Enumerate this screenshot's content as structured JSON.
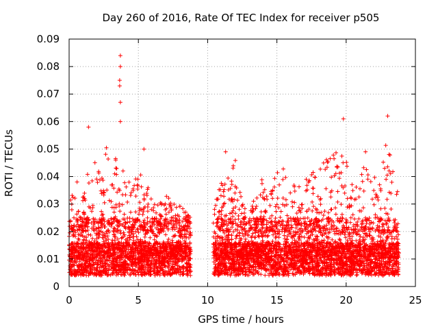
{
  "chart_data": {
    "type": "scatter",
    "title": "Day 260 of 2016, Rate Of TEC Index for receiver p505",
    "xlabel": "GPS time / hours",
    "ylabel": "ROTI / TECUs",
    "xlim": [
      0,
      25
    ],
    "ylim": [
      0,
      0.09
    ],
    "xticks": [
      0,
      5,
      10,
      15,
      20,
      25
    ],
    "xtick_labels": [
      "0",
      "5",
      "10",
      "15",
      "20",
      "25"
    ],
    "yticks": [
      0,
      0.01,
      0.02,
      0.03,
      0.04,
      0.05,
      0.06,
      0.07,
      0.08,
      0.09
    ],
    "ytick_labels": [
      "0",
      "0.01",
      "0.02",
      "0.03",
      "0.04",
      "0.05",
      "0.06",
      "0.07",
      "0.08",
      "0.09"
    ],
    "grid": true,
    "marker": "+",
    "color": "#ff0000",
    "series": [
      {
        "name": "ROTI",
        "coverage": [
          [
            0,
            8.8
          ],
          [
            10.4,
            23.8
          ]
        ],
        "data_gap_hours": [
          8.8,
          10.4
        ],
        "notable_points": [
          {
            "x": 3.7,
            "y": 0.084
          },
          {
            "x": 3.7,
            "y": 0.08
          },
          {
            "x": 3.65,
            "y": 0.075
          },
          {
            "x": 3.65,
            "y": 0.073
          },
          {
            "x": 3.7,
            "y": 0.067
          },
          {
            "x": 3.7,
            "y": 0.06
          },
          {
            "x": 1.4,
            "y": 0.058
          },
          {
            "x": 23.0,
            "y": 0.062
          },
          {
            "x": 19.8,
            "y": 0.061
          },
          {
            "x": 5.4,
            "y": 0.05
          },
          {
            "x": 11.3,
            "y": 0.049
          },
          {
            "x": 21.4,
            "y": 0.049
          }
        ]
      }
    ]
  }
}
